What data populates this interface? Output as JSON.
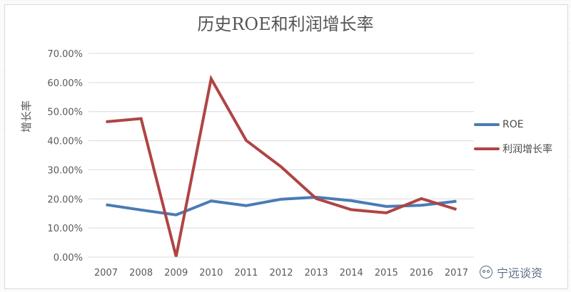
{
  "chart_data": {
    "type": "line",
    "title": "历史ROE和利润增长率",
    "xlabel": "",
    "ylabel": "增长率",
    "categories": [
      "2007",
      "2008",
      "2009",
      "2010",
      "2011",
      "2012",
      "2013",
      "2014",
      "2015",
      "2016",
      "2017"
    ],
    "ylim": [
      0,
      70
    ],
    "yticks": [
      "0.00%",
      "10.00%",
      "20.00%",
      "30.00%",
      "40.00%",
      "50.00%",
      "60.00%",
      "70.00%"
    ],
    "grid": true,
    "legend": "right",
    "series": [
      {
        "name": "ROE",
        "color": "#4a7bb5",
        "values": [
          18.0,
          16.2,
          14.5,
          19.3,
          17.7,
          19.9,
          20.6,
          19.4,
          17.4,
          17.8,
          19.2
        ]
      },
      {
        "name": "利润增长率",
        "color": "#b04444",
        "values": [
          46.5,
          47.6,
          0.2,
          61.3,
          40.1,
          31.0,
          20.1,
          16.3,
          15.2,
          20.1,
          16.4
        ]
      }
    ]
  },
  "watermark": {
    "text": "宁远谈资",
    "icon": "wechat-icon"
  }
}
